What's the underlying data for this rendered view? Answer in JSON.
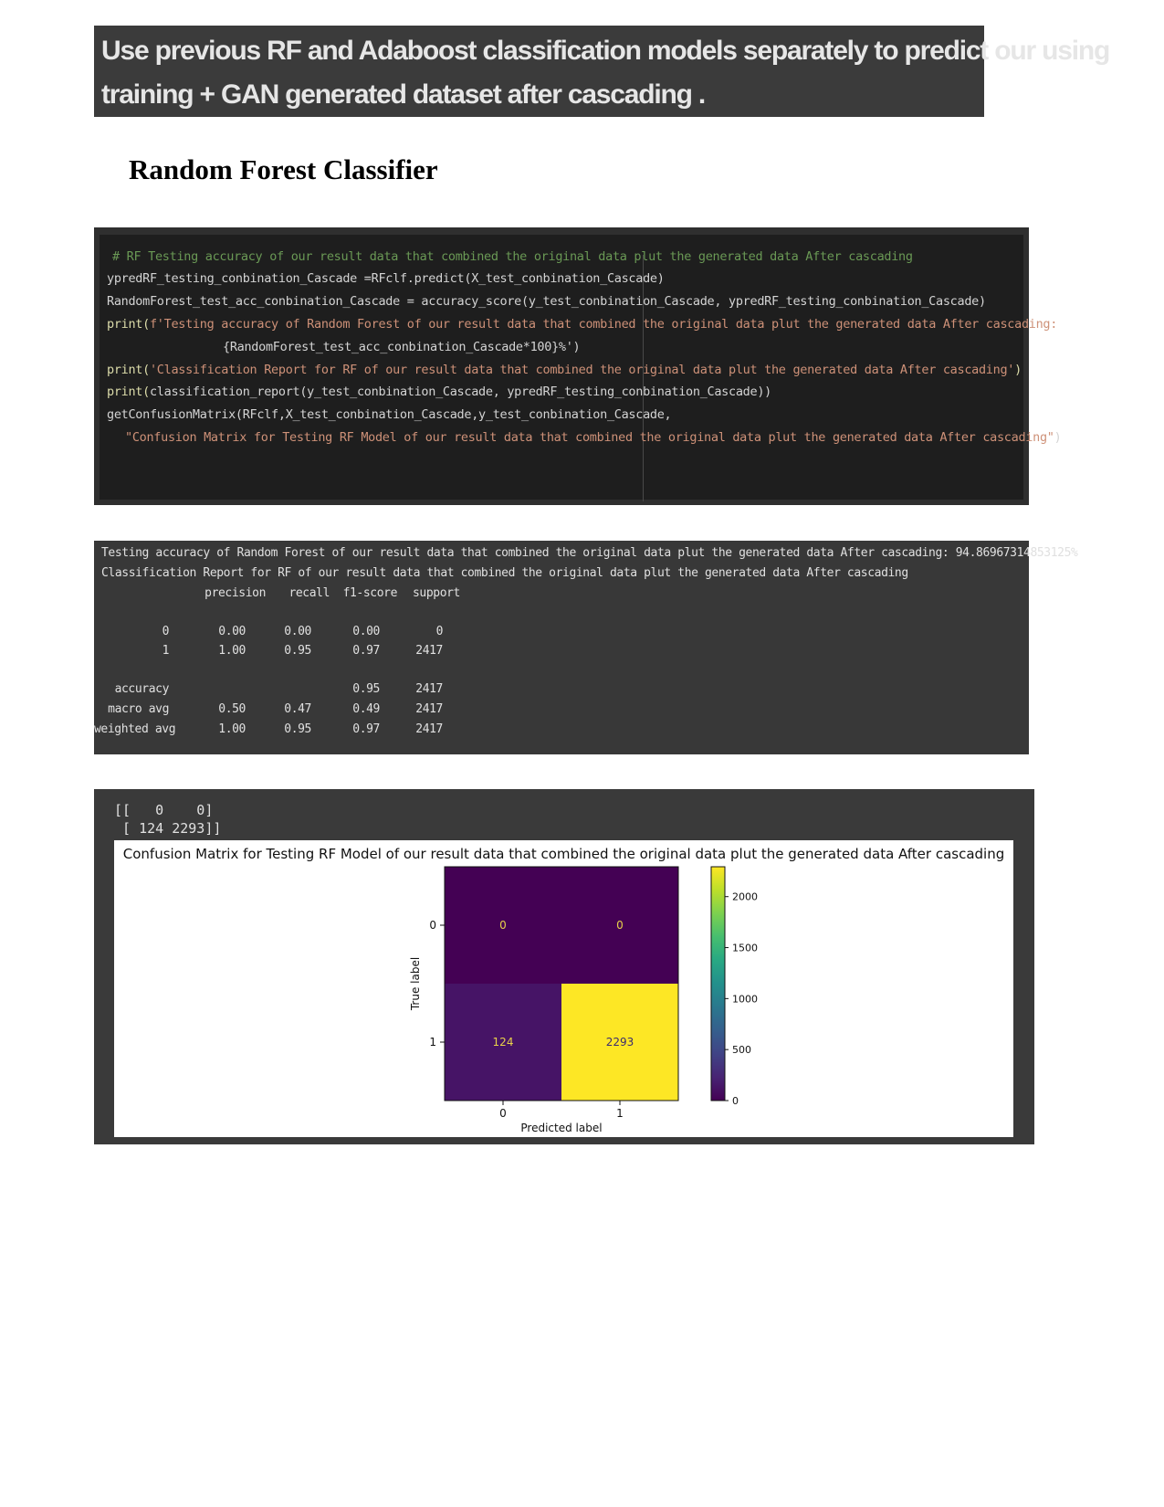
{
  "banner": {
    "line1": "Use previous RF and Adaboost classification models separately to predict our using",
    "line2": "training + GAN generated dataset after cascading ."
  },
  "section_title": "Random Forest Classifier",
  "code": {
    "comment": "# RF Testing accuracy of our result data that combined the original data plut the generated data After cascading",
    "line2": "ypredRF_testing_conbination_Cascade =RFclf.predict(X_test_conbination_Cascade)",
    "line3": "RandomForest_test_acc_conbination_Cascade = accuracy_score(y_test_conbination_Cascade, ypredRF_testing_conbination_Cascade)",
    "line4_fn": "print(",
    "line4_str": "f'Testing accuracy of Random Forest of our result data that combined the original data plut the generated data After cascading:",
    "line5": "{RandomForest_test_acc_conbination_Cascade*100}%')",
    "line6_fn": "print(",
    "line6_str": "'Classification Report for RF of our result data that combined the original data plut the generated data After cascading'",
    "line6_end": ")",
    "line7_fn": "print(",
    "line7_rest": "classification_report(y_test_conbination_Cascade, ypredRF_testing_conbination_Cascade))",
    "line8": "getConfusionMatrix(RFclf,X_test_conbination_Cascade,y_test_conbination_Cascade,",
    "line9_str": "\"Confusion Matrix for Testing RF Model of our result data that combined the original data plut the generated data After cascading\"",
    "line9_end": ")"
  },
  "output": {
    "accuracy_line": "Testing accuracy of Random Forest of our result data that combined the original data plut the generated data After cascading: 94.86967314853125%",
    "report_title": "Classification Report for RF of our result data that combined the original data plut the generated data After cascading",
    "headers": [
      "precision",
      "recall",
      "f1-score",
      "support"
    ],
    "rows": [
      {
        "label": "0",
        "precision": "0.00",
        "recall": "0.00",
        "f1": "0.00",
        "support": "0"
      },
      {
        "label": "1",
        "precision": "1.00",
        "recall": "0.95",
        "f1": "0.97",
        "support": "2417"
      },
      {
        "label": "accuracy",
        "precision": "",
        "recall": "",
        "f1": "0.95",
        "support": "2417"
      },
      {
        "label": "macro avg",
        "precision": "0.50",
        "recall": "0.47",
        "f1": "0.49",
        "support": "2417"
      },
      {
        "label": "weighted avg",
        "precision": "1.00",
        "recall": "0.95",
        "f1": "0.97",
        "support": "2417"
      }
    ]
  },
  "matrix_text": {
    "line1": "[[   0    0]",
    "line2": " [ 124 2293]]"
  },
  "chart_data": {
    "type": "heatmap",
    "title": "Confusion Matrix for Testing RF Model of our result data that combined the original data plut the generated data After cascading",
    "xlabel": "Predicted label",
    "ylabel": "True label",
    "x_ticks": [
      "0",
      "1"
    ],
    "y_ticks": [
      "0",
      "1"
    ],
    "values": [
      [
        0,
        0
      ],
      [
        124,
        2293
      ]
    ],
    "colormap": "viridis",
    "colorbar": {
      "min": 0,
      "max": 2293,
      "ticks": [
        0,
        500,
        1000,
        1500,
        2000
      ]
    }
  }
}
